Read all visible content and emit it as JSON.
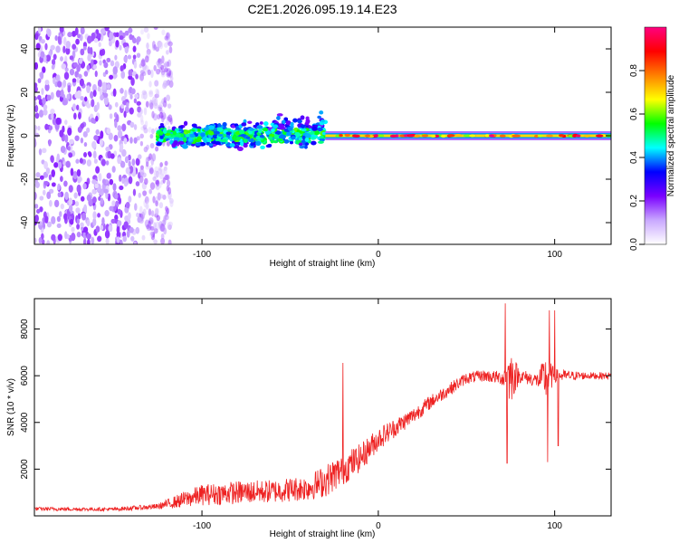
{
  "title": "C2E1.2026.095.19.14.E23",
  "chart_data": [
    {
      "type": "heatmap",
      "name": "spectrogram",
      "xlabel": "Height of straight line (km)",
      "ylabel": "Frequency (Hz)",
      "xlim": [
        -195,
        132
      ],
      "ylim": [
        -50,
        50
      ],
      "xticks": [
        -100,
        0,
        100
      ],
      "yticks": [
        -40,
        -20,
        0,
        20,
        40
      ],
      "colorbar": {
        "label": "Normalized spectral amplitude",
        "range": [
          0.0,
          1.0
        ],
        "ticks": [
          0.0,
          0.2,
          0.4,
          0.6,
          0.8
        ],
        "colormap": [
          "#ffffff",
          "#c9a8ff",
          "#7a00ff",
          "#0000ff",
          "#00ffff",
          "#00ff00",
          "#ffff00",
          "#ff8000",
          "#ff0000",
          "#ff0080"
        ]
      },
      "regions": [
        {
          "description": "broadband noise",
          "x_range": [
            -195,
            -125
          ],
          "y_range": [
            -50,
            50
          ],
          "amplitude": [
            0.05,
            0.2
          ]
        },
        {
          "description": "noisy band",
          "x_range": [
            -125,
            -30
          ],
          "y_range": [
            -8,
            8
          ],
          "amplitude": [
            0.2,
            0.45
          ]
        },
        {
          "description": "stable carrier",
          "x_range": [
            -30,
            132
          ],
          "y_range": [
            -2,
            2
          ],
          "amplitude": [
            0.6,
            1.0
          ]
        }
      ]
    },
    {
      "type": "line",
      "name": "snr",
      "xlabel": "Height of straight line (km)",
      "ylabel": "SNR (10 * v/v)",
      "xlim": [
        -195,
        132
      ],
      "ylim": [
        0,
        9300
      ],
      "xticks": [
        -100,
        0,
        100
      ],
      "yticks": [
        2000,
        4000,
        6000,
        8000
      ],
      "color": "#ee2222",
      "series": [
        {
          "name": "SNR",
          "x": [
            -195,
            -150,
            -125,
            -110,
            -100,
            -80,
            -60,
            -40,
            -30,
            -20,
            -10,
            0,
            10,
            20,
            30,
            40,
            50,
            60,
            70,
            75,
            80,
            90,
            95,
            100,
            110,
            120,
            132
          ],
          "y": [
            300,
            280,
            400,
            700,
            900,
            1000,
            1050,
            1200,
            1500,
            2000,
            2500,
            3300,
            3800,
            4300,
            4900,
            5400,
            5900,
            6000,
            5900,
            6000,
            6000,
            5800,
            5900,
            6000,
            6000,
            6000,
            6000
          ],
          "noise": [
            80,
            80,
            120,
            350,
            450,
            500,
            500,
            550,
            700,
            700,
            600,
            500,
            400,
            350,
            300,
            280,
            250,
            250,
            300,
            1200,
            300,
            300,
            1000,
            300,
            200,
            150,
            150
          ],
          "spikes": [
            {
              "x": -20,
              "y": 6550
            },
            {
              "x": 72,
              "y": 9100
            },
            {
              "x": 73,
              "y": 2250
            },
            {
              "x": 97,
              "y": 8800
            },
            {
              "x": 96,
              "y": 2300
            },
            {
              "x": 100,
              "y": 8800
            },
            {
              "x": 102,
              "y": 3000
            }
          ]
        }
      ]
    }
  ]
}
